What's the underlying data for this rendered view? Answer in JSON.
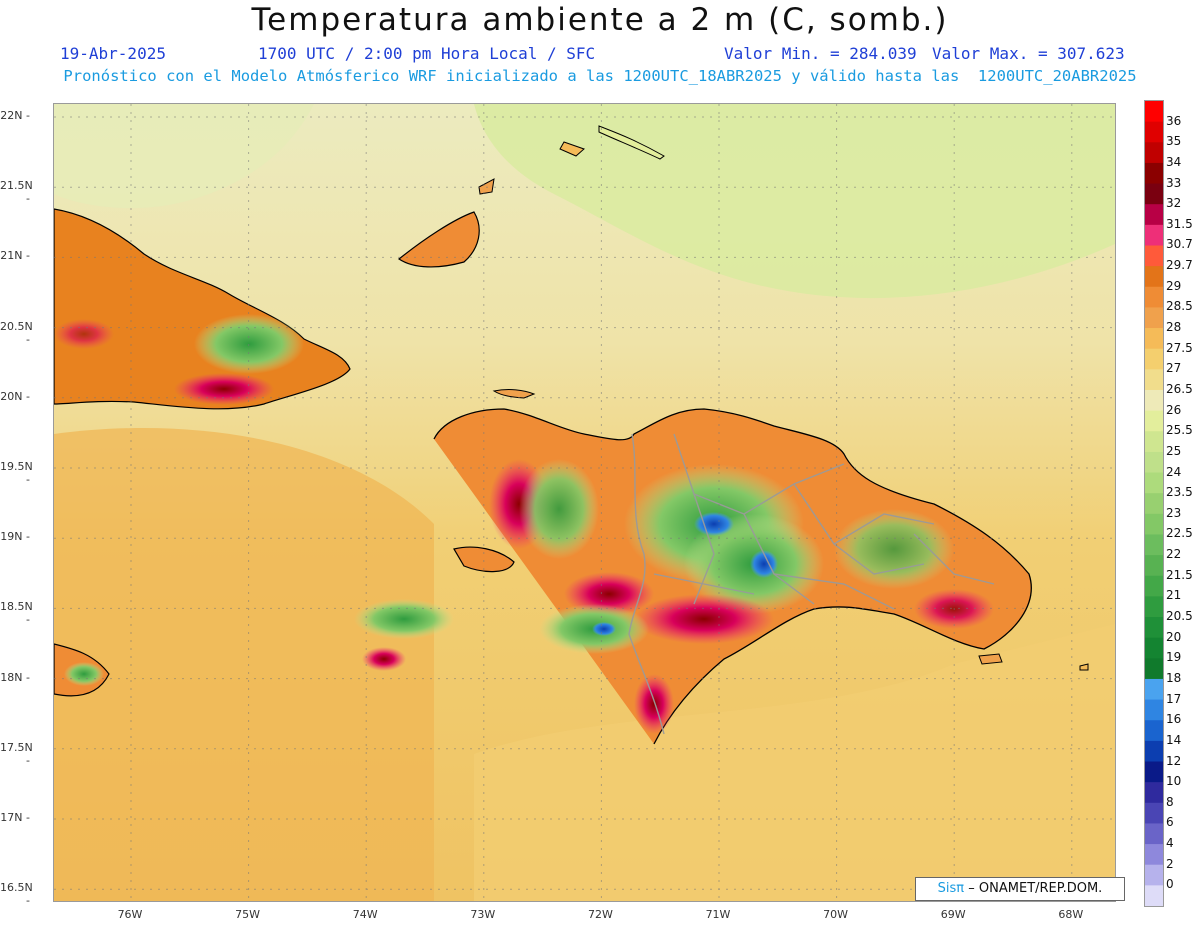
{
  "header": {
    "title": "Temperatura ambiente a 2 m (C, somb.)",
    "date": "19-Abr-2025",
    "time": "1700 UTC / 2:00 pm Hora Local / SFC",
    "min_label": "Valor Min. = 284.039",
    "max_label": "Valor Max. = 307.623",
    "model_line": "Pronóstico con el Modelo Atmósferico WRF inicializado a las 1200UTC_18ABR2025 y válido hasta las  1200UTC_20ABR2025"
  },
  "lat_labels": [
    "22N",
    "21.5N",
    "21N",
    "20.5N",
    "20N",
    "19.5N",
    "19N",
    "18.5N",
    "18N",
    "17.5N",
    "17N",
    "16.5N"
  ],
  "lon_labels": [
    "76W",
    "75W",
    "74W",
    "73W",
    "72W",
    "71W",
    "70W",
    "69W",
    "68W"
  ],
  "colorbar": {
    "labels": [
      "36",
      "35",
      "34",
      "33",
      "32",
      "31.5",
      "30.7",
      "29.7",
      "29",
      "28.5",
      "28",
      "27.5",
      "27",
      "26.5",
      "26",
      "25.5",
      "25",
      "24",
      "23.5",
      "23",
      "22.5",
      "22",
      "21.5",
      "21",
      "20.5",
      "20",
      "19",
      "18",
      "17",
      "16",
      "14",
      "12",
      "10",
      "8",
      "6",
      "4",
      "2",
      "0"
    ],
    "colors": [
      "#ff0000",
      "#e00000",
      "#c00000",
      "#8b0000",
      "#7a0010",
      "#b80045",
      "#ee2f78",
      "#ff5a3a",
      "#e37419",
      "#ef8c35",
      "#f0a14c",
      "#f5bb58",
      "#f4cf6e",
      "#f1dd8c",
      "#eeeab8",
      "#e3ee9c",
      "#cfe690",
      "#bfe08a",
      "#addb7c",
      "#98d070",
      "#83c866",
      "#6cbd5e",
      "#58b252",
      "#43a848",
      "#2f9c3f",
      "#1f9038",
      "#148431",
      "#107a2c",
      "#4aa3ef",
      "#2f85e2",
      "#1a64cf",
      "#0c3eb0",
      "#0a1a88",
      "#2f2a9e",
      "#4a45b4",
      "#6a64c8",
      "#8e88dc",
      "#b6b2ec",
      "#dedcf8"
    ]
  },
  "credit": {
    "sis": "Sisπ",
    "org": "– ONAMET/REP.DOM."
  },
  "colors": {
    "ocean_warm": "#f0c466",
    "ocean_cool": "#efe9b6",
    "land_hot": "#c8005a",
    "land_cool": "#6bbf5f",
    "coast": "#000000",
    "border": "#9a9a9a"
  }
}
